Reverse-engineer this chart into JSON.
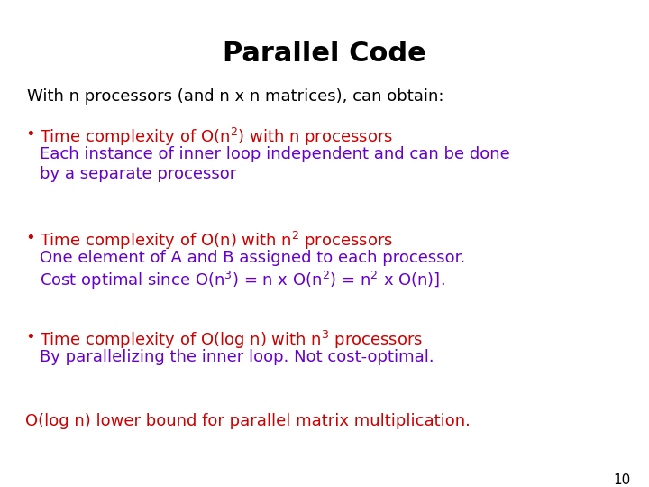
{
  "title": "Parallel Code",
  "title_fontsize": 22,
  "title_color": "#000000",
  "bg_color": "#ffffff",
  "subtitle": "With n processors (and n x n matrices), can obtain:",
  "subtitle_color": "#000000",
  "subtitle_fontsize": 13,
  "bullet_color": "#cc0000",
  "detail_color": "#6600cc",
  "last_line_color": "#cc0000",
  "page_number": "10",
  "bullet_fs": 13,
  "detail_fs": 13,
  "items": [
    {
      "bullet_line": "Time complexity of O(n",
      "bullet_sup": "2",
      "bullet_rest": ") with n processors",
      "detail_lines": [
        "Each instance of inner loop independent and can be done",
        "by a separate processor"
      ]
    },
    {
      "bullet_line": "Time complexity of O(n) with n",
      "bullet_sup": "2",
      "bullet_rest": " processors",
      "detail_lines": [
        "One element of A and B assigned to each processor.",
        "Cost optimal since O(n$^{3}$) = n x O(n$^{2}$) = n$^{2}$ x O(n)]."
      ]
    },
    {
      "bullet_line": "Time complexity of O(log n) with n",
      "bullet_sup": "3",
      "bullet_rest": " processors",
      "detail_lines": [
        "By parallelizing the inner loop. Not cost-optimal."
      ]
    }
  ],
  "footer": "O(log n) lower bound for parallel matrix multiplication."
}
